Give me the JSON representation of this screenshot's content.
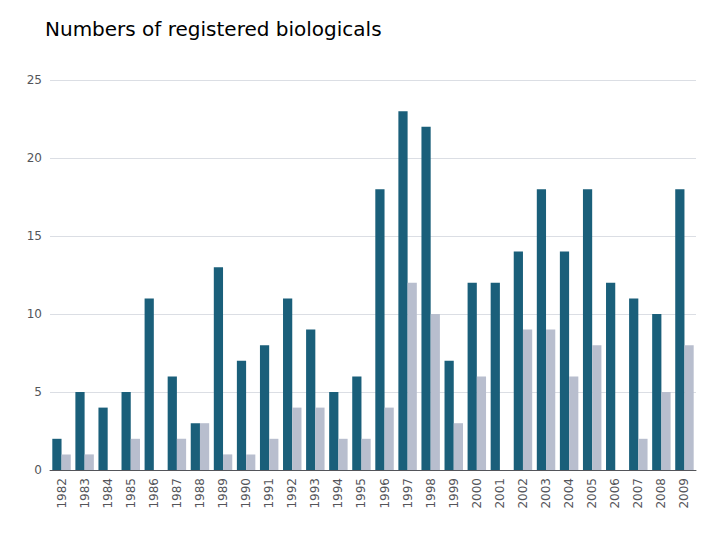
{
  "chart_data": {
    "type": "bar",
    "title": "Numbers of registered biologicals",
    "categories": [
      "1982",
      "1983",
      "1984",
      "1985",
      "1986",
      "1987",
      "1988",
      "1989",
      "1990",
      "1991",
      "1992",
      "1993",
      "1994",
      "1995",
      "1996",
      "1997",
      "1998",
      "1999",
      "2000",
      "2001",
      "2002",
      "2003",
      "2004",
      "2005",
      "2006",
      "2007",
      "2008",
      "2009"
    ],
    "series": [
      {
        "color": "#1a5f7a",
        "values": [
          2,
          5,
          4,
          5,
          11,
          6,
          3,
          13,
          7,
          8,
          11,
          9,
          5,
          6,
          18,
          23,
          22,
          7,
          12,
          12,
          14,
          18,
          14,
          18,
          12,
          11,
          10,
          18
        ]
      },
      {
        "color": "#b8bece",
        "values": [
          1,
          1,
          0,
          2,
          0,
          2,
          3,
          1,
          1,
          2,
          4,
          4,
          2,
          2,
          4,
          12,
          10,
          3,
          6,
          0,
          9,
          9,
          6,
          8,
          0,
          2,
          5,
          8
        ]
      }
    ],
    "ylim": [
      0,
      25
    ],
    "yticks": [
      0,
      5,
      10,
      15,
      20,
      25
    ],
    "grid": true
  }
}
